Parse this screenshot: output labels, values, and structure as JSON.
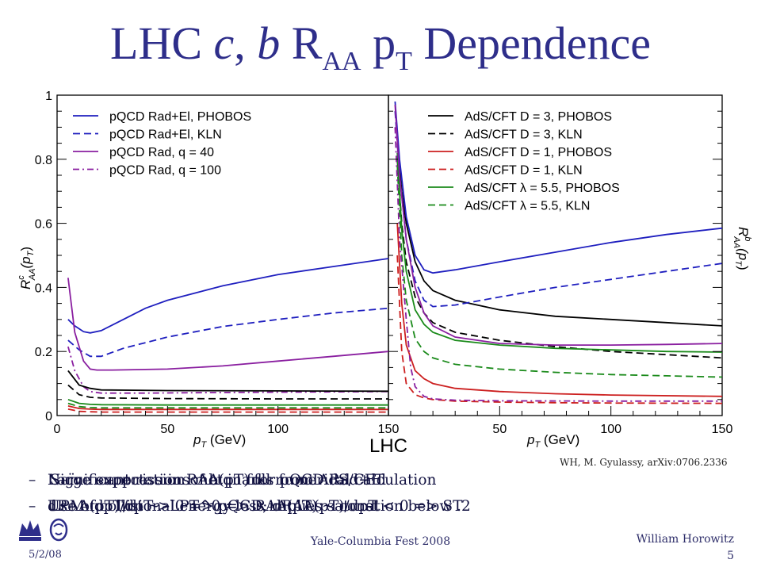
{
  "slide": {
    "title_prefix": "LHC ",
    "title_c": "c",
    "title_mid": ", ",
    "title_b": "b",
    "title_R": " R",
    "title_sub_AA": "AA",
    "title_p": " p",
    "title_sub_T": "T",
    "title_suffix": " Dependence",
    "center_label": "LHC",
    "citation": "WH, M. Gyulassy, arXiv:0706.2336",
    "bullets_layer1": [
      "Significant rise in RAA(pT) for pQCD Rad+El",
      "LPM: dpT/dt ~ -LPT^0 => RAA(pT) ~ const"
    ],
    "bullets_layer2": [
      "Naïve expectations met in full numerical calculation",
      "dRAA(pT)/dpT > 0 => pQCD; dRAA(pT)/dpT < 0 => ST"
    ],
    "bullets_layer3": [
      "Large suppression of b quarks from AdS/CFT",
      "Use of collisional energy loss implies saturation below .2"
    ],
    "footer": {
      "date": "5/2/08",
      "event": "Yale-Columbia Fest 2008",
      "author": "William Horowitz",
      "page": "5"
    }
  },
  "chart_data": [
    {
      "type": "line",
      "panel": "left",
      "xlabel": "pT (GeV)",
      "ylabel": "R^c_AA(pT)",
      "xlim": [
        0,
        150
      ],
      "ylim": [
        0,
        1
      ],
      "x_ticks": [
        "0",
        "50",
        "100",
        "150"
      ],
      "y_ticks": [
        "0",
        "0.2",
        "0.4",
        "0.6",
        "0.8",
        "1"
      ],
      "legend_position": "top-left",
      "series": [
        {
          "name": "pQCD Rad+El, PHOBOS",
          "color": "#1f1fbf",
          "style": "solid",
          "legend": true,
          "x": [
            5,
            8,
            12,
            15,
            20,
            30,
            40,
            50,
            75,
            100,
            125,
            150
          ],
          "y": [
            0.3,
            0.28,
            0.262,
            0.258,
            0.265,
            0.3,
            0.335,
            0.36,
            0.405,
            0.44,
            0.465,
            0.49
          ]
        },
        {
          "name": "pQCD Rad+El, KLN",
          "color": "#1f1fbf",
          "style": "dashed",
          "legend": true,
          "x": [
            5,
            10,
            15,
            20,
            30,
            50,
            75,
            100,
            125,
            150
          ],
          "y": [
            0.235,
            0.205,
            0.185,
            0.185,
            0.21,
            0.245,
            0.278,
            0.3,
            0.32,
            0.335
          ]
        },
        {
          "name": "pQCD Rad, q = 40",
          "color": "#8a1fa0",
          "style": "solid",
          "legend": true,
          "x": [
            5,
            8,
            12,
            15,
            18,
            25,
            50,
            75,
            100,
            125,
            150
          ],
          "y": [
            0.43,
            0.26,
            0.17,
            0.145,
            0.142,
            0.142,
            0.145,
            0.155,
            0.17,
            0.185,
            0.2
          ]
        },
        {
          "name": "pQCD Rad, q = 100",
          "color": "#8a1fa0",
          "style": "dashdot",
          "legend": true,
          "x": [
            5,
            8,
            12,
            15,
            20,
            40,
            75,
            100,
            150
          ],
          "y": [
            0.215,
            0.14,
            0.09,
            0.075,
            0.07,
            0.07,
            0.072,
            0.073,
            0.075
          ]
        },
        {
          "name": "AdS/CFT D = 3, PHOBOS",
          "color": "#000000",
          "style": "solid",
          "legend": false,
          "x": [
            5,
            10,
            15,
            20,
            50,
            100,
            150
          ],
          "y": [
            0.14,
            0.095,
            0.085,
            0.08,
            0.078,
            0.077,
            0.076
          ]
        },
        {
          "name": "AdS/CFT D = 3, KLN",
          "color": "#000000",
          "style": "dashed",
          "legend": false,
          "x": [
            5,
            10,
            15,
            20,
            50,
            100,
            150
          ],
          "y": [
            0.095,
            0.065,
            0.057,
            0.055,
            0.053,
            0.052,
            0.052
          ]
        },
        {
          "name": "AdS/CFT lambda = 5.5, PHOBOS",
          "color": "#1a8a1a",
          "style": "solid",
          "legend": false,
          "x": [
            5,
            10,
            15,
            20,
            50,
            100,
            150
          ],
          "y": [
            0.05,
            0.038,
            0.035,
            0.034,
            0.033,
            0.033,
            0.033
          ]
        },
        {
          "name": "AdS/CFT lambda = 5.5, KLN",
          "color": "#1a8a1a",
          "style": "dashed",
          "legend": false,
          "x": [
            5,
            10,
            15,
            20,
            50,
            100,
            150
          ],
          "y": [
            0.038,
            0.028,
            0.025,
            0.024,
            0.024,
            0.024,
            0.024
          ]
        },
        {
          "name": "AdS/CFT D = 1, PHOBOS",
          "color": "#cc1f1f",
          "style": "solid",
          "legend": false,
          "x": [
            5,
            10,
            15,
            20,
            50,
            100,
            150
          ],
          "y": [
            0.03,
            0.022,
            0.02,
            0.019,
            0.019,
            0.019,
            0.019
          ]
        },
        {
          "name": "AdS/CFT D = 1, KLN",
          "color": "#cc1f1f",
          "style": "dashed",
          "legend": false,
          "x": [
            5,
            10,
            15,
            20,
            50,
            100,
            150
          ],
          "y": [
            0.02,
            0.013,
            0.012,
            0.011,
            0.011,
            0.011,
            0.011
          ]
        }
      ]
    },
    {
      "type": "line",
      "panel": "right",
      "xlabel": "pT (GeV)",
      "ylabel": "R^b_AA(pT)",
      "xlim": [
        0,
        150
      ],
      "ylim": [
        0,
        1
      ],
      "x_ticks": [
        "50",
        "100",
        "150"
      ],
      "legend_position": "top-right",
      "series": [
        {
          "name": "AdS/CFT D = 3, PHOBOS",
          "color": "#000000",
          "style": "solid",
          "legend": true,
          "x": [
            4,
            6,
            8,
            12,
            16,
            20,
            30,
            50,
            75,
            100,
            125,
            150
          ],
          "y": [
            0.85,
            0.7,
            0.6,
            0.48,
            0.42,
            0.39,
            0.36,
            0.33,
            0.31,
            0.3,
            0.29,
            0.28
          ]
        },
        {
          "name": "AdS/CFT D = 3, KLN",
          "color": "#000000",
          "style": "dashed",
          "legend": true,
          "x": [
            4,
            6,
            8,
            12,
            16,
            20,
            30,
            50,
            75,
            100,
            125,
            150
          ],
          "y": [
            0.8,
            0.6,
            0.48,
            0.37,
            0.32,
            0.29,
            0.26,
            0.235,
            0.215,
            0.2,
            0.19,
            0.18
          ]
        },
        {
          "name": "AdS/CFT D = 1, PHOBOS",
          "color": "#cc1f1f",
          "style": "solid",
          "legend": true,
          "x": [
            4,
            6,
            8,
            12,
            16,
            20,
            30,
            50,
            75,
            100,
            150
          ],
          "y": [
            0.6,
            0.35,
            0.22,
            0.14,
            0.115,
            0.1,
            0.085,
            0.075,
            0.068,
            0.064,
            0.06
          ]
        },
        {
          "name": "AdS/CFT D = 1, KLN",
          "color": "#cc1f1f",
          "style": "dashed",
          "legend": true,
          "x": [
            4,
            6,
            8,
            12,
            16,
            20,
            30,
            50,
            75,
            100,
            150
          ],
          "y": [
            0.5,
            0.2,
            0.1,
            0.065,
            0.055,
            0.05,
            0.045,
            0.042,
            0.04,
            0.039,
            0.038
          ]
        },
        {
          "name": "AdS/CFT λ = 5.5, PHOBOS",
          "color": "#1a8a1a",
          "style": "solid",
          "legend": true,
          "x": [
            4,
            6,
            8,
            12,
            16,
            20,
            30,
            50,
            75,
            100,
            125,
            150
          ],
          "y": [
            0.82,
            0.58,
            0.45,
            0.33,
            0.285,
            0.26,
            0.235,
            0.22,
            0.21,
            0.205,
            0.2,
            0.198
          ]
        },
        {
          "name": "AdS/CFT λ = 5.5, KLN",
          "color": "#1a8a1a",
          "style": "dashed",
          "legend": true,
          "x": [
            4,
            6,
            8,
            12,
            16,
            20,
            30,
            50,
            75,
            100,
            125,
            150
          ],
          "y": [
            0.78,
            0.5,
            0.36,
            0.24,
            0.2,
            0.18,
            0.16,
            0.145,
            0.135,
            0.128,
            0.124,
            0.12
          ]
        },
        {
          "name": "pQCD Rad+El, PHOBOS",
          "color": "#1f1fbf",
          "style": "solid",
          "legend": false,
          "x": [
            3,
            5,
            8,
            12,
            16,
            20,
            30,
            50,
            75,
            100,
            125,
            150
          ],
          "y": [
            0.98,
            0.8,
            0.62,
            0.5,
            0.455,
            0.445,
            0.455,
            0.48,
            0.51,
            0.54,
            0.565,
            0.585
          ]
        },
        {
          "name": "pQCD Rad+El, KLN",
          "color": "#1f1fbf",
          "style": "dashed",
          "legend": false,
          "x": [
            3,
            5,
            8,
            12,
            16,
            20,
            30,
            50,
            75,
            100,
            125,
            150
          ],
          "y": [
            0.95,
            0.75,
            0.55,
            0.42,
            0.36,
            0.34,
            0.345,
            0.37,
            0.4,
            0.425,
            0.45,
            0.475
          ]
        },
        {
          "name": "pQCD Rad, q = 40",
          "color": "#8a1fa0",
          "style": "solid",
          "legend": false,
          "x": [
            3,
            5,
            8,
            12,
            16,
            20,
            30,
            50,
            75,
            100,
            125,
            150
          ],
          "y": [
            0.97,
            0.75,
            0.55,
            0.4,
            0.32,
            0.28,
            0.245,
            0.225,
            0.22,
            0.22,
            0.222,
            0.225
          ]
        },
        {
          "name": "pQCD Rad, q = 100",
          "color": "#8a1fa0",
          "style": "dashdot",
          "legend": false,
          "x": [
            3,
            5,
            8,
            10,
            12,
            16,
            20,
            30,
            50,
            100,
            150
          ],
          "y": [
            0.9,
            0.55,
            0.3,
            0.15,
            0.09,
            0.06,
            0.052,
            0.048,
            0.046,
            0.045,
            0.045
          ]
        }
      ]
    }
  ]
}
